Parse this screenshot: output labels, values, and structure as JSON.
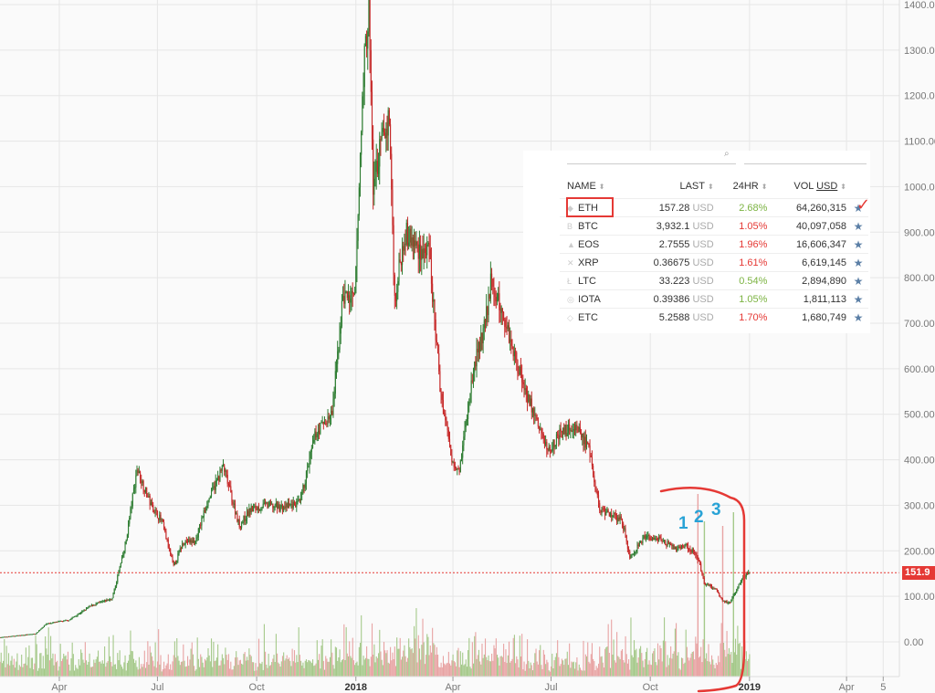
{
  "chart_data": {
    "type": "candlestick",
    "y_axis": {
      "ticks": [
        "1400.00",
        "1300.00",
        "1200.00",
        "1100.00",
        "1000.00",
        "900.00",
        "800.00",
        "700.00",
        "600.00",
        "500.00",
        "400.00",
        "300.00",
        "200.00",
        "100.00",
        "0.00"
      ],
      "range": [
        -50,
        1400
      ],
      "position": "right"
    },
    "x_axis": {
      "ticks": [
        {
          "label": "Apr",
          "date": "2017-04-01",
          "bold": false
        },
        {
          "label": "Jul",
          "date": "2017-07-01",
          "bold": false
        },
        {
          "label": "Oct",
          "date": "2017-10-01",
          "bold": false
        },
        {
          "label": "2018",
          "date": "2018-01-01",
          "bold": true
        },
        {
          "label": "Apr",
          "date": "2018-04-01",
          "bold": false
        },
        {
          "label": "Jul",
          "date": "2018-07-01",
          "bold": false
        },
        {
          "label": "Oct",
          "date": "2018-10-01",
          "bold": false
        },
        {
          "label": "2019",
          "date": "2019-01-01",
          "bold": true
        },
        {
          "label": "Apr",
          "date": "2019-04-01",
          "bold": false
        },
        {
          "label": "5",
          "date": "2019-05-05",
          "bold": false
        }
      ],
      "range": [
        "2017-02-05",
        "2019-05-20"
      ]
    },
    "grid": true,
    "last_price": "151.9",
    "last_price_value": 151.9,
    "price_series": [
      {
        "date": "2017-02-05",
        "value": 10
      },
      {
        "date": "2017-03-10",
        "value": 18
      },
      {
        "date": "2017-03-20",
        "value": 40
      },
      {
        "date": "2017-04-10",
        "value": 48
      },
      {
        "date": "2017-05-01",
        "value": 80
      },
      {
        "date": "2017-05-20",
        "value": 95
      },
      {
        "date": "2017-06-01",
        "value": 210
      },
      {
        "date": "2017-06-12",
        "value": 380
      },
      {
        "date": "2017-06-25",
        "value": 300
      },
      {
        "date": "2017-07-05",
        "value": 265
      },
      {
        "date": "2017-07-16",
        "value": 165
      },
      {
        "date": "2017-07-25",
        "value": 220
      },
      {
        "date": "2017-08-05",
        "value": 220
      },
      {
        "date": "2017-08-15",
        "value": 300
      },
      {
        "date": "2017-08-31",
        "value": 385
      },
      {
        "date": "2017-09-15",
        "value": 255
      },
      {
        "date": "2017-09-25",
        "value": 290
      },
      {
        "date": "2017-10-10",
        "value": 300
      },
      {
        "date": "2017-10-25",
        "value": 295
      },
      {
        "date": "2017-11-10",
        "value": 305
      },
      {
        "date": "2017-11-25",
        "value": 460
      },
      {
        "date": "2017-12-10",
        "value": 500
      },
      {
        "date": "2017-12-20",
        "value": 760
      },
      {
        "date": "2017-12-31",
        "value": 750
      },
      {
        "date": "2018-01-08",
        "value": 1250
      },
      {
        "date": "2018-01-13",
        "value": 1390
      },
      {
        "date": "2018-01-17",
        "value": 1000
      },
      {
        "date": "2018-01-25",
        "value": 1100
      },
      {
        "date": "2018-02-01",
        "value": 1150
      },
      {
        "date": "2018-02-06",
        "value": 750
      },
      {
        "date": "2018-02-15",
        "value": 900
      },
      {
        "date": "2018-02-25",
        "value": 870
      },
      {
        "date": "2018-03-10",
        "value": 850
      },
      {
        "date": "2018-03-20",
        "value": 560
      },
      {
        "date": "2018-03-31",
        "value": 400
      },
      {
        "date": "2018-04-07",
        "value": 380
      },
      {
        "date": "2018-04-20",
        "value": 600
      },
      {
        "date": "2018-05-01",
        "value": 700
      },
      {
        "date": "2018-05-06",
        "value": 790
      },
      {
        "date": "2018-05-20",
        "value": 700
      },
      {
        "date": "2018-06-01",
        "value": 600
      },
      {
        "date": "2018-06-15",
        "value": 500
      },
      {
        "date": "2018-06-28",
        "value": 420
      },
      {
        "date": "2018-07-10",
        "value": 460
      },
      {
        "date": "2018-07-25",
        "value": 475
      },
      {
        "date": "2018-08-05",
        "value": 420
      },
      {
        "date": "2018-08-15",
        "value": 290
      },
      {
        "date": "2018-08-25",
        "value": 280
      },
      {
        "date": "2018-09-05",
        "value": 265
      },
      {
        "date": "2018-09-12",
        "value": 185
      },
      {
        "date": "2018-09-25",
        "value": 230
      },
      {
        "date": "2018-10-10",
        "value": 225
      },
      {
        "date": "2018-10-25",
        "value": 205
      },
      {
        "date": "2018-11-05",
        "value": 210
      },
      {
        "date": "2018-11-15",
        "value": 180
      },
      {
        "date": "2018-11-20",
        "value": 130
      },
      {
        "date": "2018-12-01",
        "value": 115
      },
      {
        "date": "2018-12-07",
        "value": 90
      },
      {
        "date": "2018-12-14",
        "value": 85
      },
      {
        "date": "2018-12-24",
        "value": 135
      },
      {
        "date": "2019-01-01",
        "value": 152
      }
    ],
    "volume_scale": "relative (0-1)",
    "annotations": [
      "1",
      "2",
      "3"
    ]
  },
  "watchlist": {
    "headers": {
      "name": "NAME",
      "last": "LAST",
      "change": "24HR",
      "volume": "VOL",
      "volume_currency": "USD"
    },
    "rows": [
      {
        "symbol": "ETH",
        "icon": "ethereum-icon",
        "glyph": "◆",
        "last": "157.28",
        "currency": "USD",
        "change": "2.68%",
        "direction": "up",
        "volume": "64,260,315"
      },
      {
        "symbol": "BTC",
        "icon": "bitcoin-icon",
        "glyph": "B",
        "last": "3,932.1",
        "currency": "USD",
        "change": "1.05%",
        "direction": "down",
        "volume": "40,097,058"
      },
      {
        "symbol": "EOS",
        "icon": "eos-icon",
        "glyph": "▲",
        "last": "2.7555",
        "currency": "USD",
        "change": "1.96%",
        "direction": "down",
        "volume": "16,606,347"
      },
      {
        "symbol": "XRP",
        "icon": "ripple-icon",
        "glyph": "✕",
        "last": "0.36675",
        "currency": "USD",
        "change": "1.61%",
        "direction": "down",
        "volume": "6,619,145"
      },
      {
        "symbol": "LTC",
        "icon": "litecoin-icon",
        "glyph": "Ł",
        "last": "33.223",
        "currency": "USD",
        "change": "0.54%",
        "direction": "up",
        "volume": "2,894,890"
      },
      {
        "symbol": "IOTA",
        "icon": "iota-icon",
        "glyph": "◎",
        "last": "0.39386",
        "currency": "USD",
        "change": "1.05%",
        "direction": "up",
        "volume": "1,811,113"
      },
      {
        "symbol": "ETC",
        "icon": "ethereum-classic-icon",
        "glyph": "◇",
        "last": "5.2588",
        "currency": "USD",
        "change": "1.70%",
        "direction": "down",
        "volume": "1,680,749"
      }
    ],
    "star_glyph": "★"
  },
  "colors": {
    "up": "#2e7d32",
    "down": "#c62828",
    "vol_up": "#a5c98a",
    "vol_down": "#e8a3a3",
    "annotation_red": "#e53935",
    "annotation_blue": "#29a3d6"
  }
}
